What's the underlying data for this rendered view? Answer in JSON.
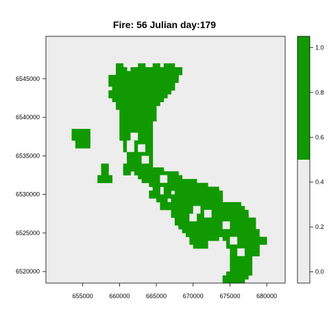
{
  "chart_data": {
    "type": "heatmap",
    "title": "Fire: 56   Julian day:179",
    "xlabel": "",
    "ylabel": "",
    "xlim": [
      650000,
      682500
    ],
    "ylim": [
      6518500,
      6550500
    ],
    "cell_size": 1000,
    "x_ticks": [
      655000,
      660000,
      665000,
      670000,
      675000,
      680000
    ],
    "x_tick_labels": [
      "655000",
      "660000",
      "665000",
      "670000",
      "675000",
      "680000"
    ],
    "y_ticks": [
      6520000,
      6525000,
      6530000,
      6535000,
      6540000,
      6545000
    ],
    "y_tick_labels": [
      "6520000",
      "6525000",
      "6530000",
      "6535000",
      "6540000",
      "6545000"
    ],
    "background_value": 0,
    "burned_value": 1,
    "colors": {
      "background": "#ededed",
      "burned": "#119901",
      "axis": "#000000"
    },
    "colorbar": {
      "ticks": [
        0.0,
        0.2,
        0.4,
        0.6,
        0.8,
        1.0
      ],
      "tick_labels": [
        "0.0",
        "0.2",
        "0.4",
        "0.6",
        "0.8",
        "1.0"
      ],
      "range": [
        -0.05,
        1.05
      ],
      "breakpoint": 0.5
    },
    "burned_cells_by_row": [
      {
        "y": 6546500,
        "x_ranges": [
          [
            660000,
            660000
          ],
          [
            663000,
            663000
          ],
          [
            665000,
            665000
          ],
          [
            666500,
            667000
          ]
        ]
      },
      {
        "y": 6546000,
        "x_ranges": [
          [
            660000,
            660500
          ],
          [
            662000,
            662500
          ],
          [
            663000,
            666000
          ],
          [
            667500,
            668000
          ]
        ]
      },
      {
        "y": 6545500,
        "x_ranges": [
          [
            660000,
            667500
          ]
        ]
      },
      {
        "y": 6545000,
        "x_ranges": [
          [
            659000,
            667500
          ]
        ]
      },
      {
        "y": 6544500,
        "x_ranges": [
          [
            659000,
            667000
          ]
        ]
      },
      {
        "y": 6544000,
        "x_ranges": [
          [
            659500,
            667000
          ]
        ]
      },
      {
        "y": 6543500,
        "x_ranges": [
          [
            659500,
            666500
          ]
        ]
      },
      {
        "y": 6543000,
        "x_ranges": [
          [
            659000,
            666000
          ]
        ]
      },
      {
        "y": 6542500,
        "x_ranges": [
          [
            659500,
            665500
          ]
        ]
      },
      {
        "y": 6542000,
        "x_ranges": [
          [
            660000,
            665000
          ]
        ]
      },
      {
        "y": 6541500,
        "x_ranges": [
          [
            660000,
            664500
          ]
        ]
      },
      {
        "y": 6541000,
        "x_ranges": [
          [
            660500,
            664500
          ]
        ]
      },
      {
        "y": 6540500,
        "x_ranges": [
          [
            660500,
            664500
          ]
        ]
      },
      {
        "y": 6540000,
        "x_ranges": [
          [
            660500,
            664500
          ]
        ]
      },
      {
        "y": 6539500,
        "x_ranges": [
          [
            660500,
            664000
          ]
        ]
      },
      {
        "y": 6539000,
        "x_ranges": [
          [
            660500,
            664000
          ]
        ]
      },
      {
        "y": 6538500,
        "x_ranges": [
          [
            660500,
            664000
          ]
        ]
      },
      {
        "y": 6538000,
        "x_ranges": [
          [
            654000,
            655500
          ],
          [
            660500,
            661500
          ],
          [
            662500,
            664000
          ]
        ]
      },
      {
        "y": 6537500,
        "x_ranges": [
          [
            654000,
            655500
          ],
          [
            660500,
            661500
          ],
          [
            662500,
            663500
          ],
          [
            664000,
            664000
          ]
        ]
      },
      {
        "y": 6537000,
        "x_ranges": [
          [
            654500,
            655500
          ],
          [
            661000,
            662500
          ],
          [
            663000,
            664000
          ]
        ]
      },
      {
        "y": 6536500,
        "x_ranges": [
          [
            654500,
            655500
          ],
          [
            661000,
            664000
          ]
        ]
      },
      {
        "y": 6536000,
        "x_ranges": [
          [
            661000,
            661500
          ],
          [
            662500,
            663000
          ],
          [
            664000,
            664000
          ]
        ]
      },
      {
        "y": 6535500,
        "x_ranges": [
          [
            661500,
            663000
          ],
          [
            664000,
            664000
          ]
        ]
      },
      {
        "y": 6535000,
        "x_ranges": [
          [
            661500,
            664000
          ]
        ]
      },
      {
        "y": 6534500,
        "x_ranges": [
          [
            661500,
            662500
          ],
          [
            663500,
            664000
          ]
        ]
      },
      {
        "y": 6534000,
        "x_ranges": [
          [
            662000,
            664000
          ]
        ]
      },
      {
        "y": 6533500,
        "x_ranges": [
          [
            658000,
            658000
          ],
          [
            661000,
            661500
          ],
          [
            662500,
            664000
          ]
        ]
      },
      {
        "y": 6533000,
        "x_ranges": [
          [
            658000,
            658000
          ],
          [
            661000,
            661000
          ],
          [
            662500,
            665500
          ]
        ]
      },
      {
        "y": 6532500,
        "x_ranges": [
          [
            663000,
            666000
          ],
          [
            666500,
            667500
          ]
        ]
      },
      {
        "y": 6532000,
        "x_ranges": [
          [
            657500,
            658500
          ],
          [
            663500,
            664000
          ],
          [
            664500,
            668000
          ]
        ]
      },
      {
        "y": 6531500,
        "x_ranges": [
          [
            664500,
            668000
          ],
          [
            669000,
            670000
          ]
        ]
      },
      {
        "y": 6531000,
        "x_ranges": [
          [
            665000,
            665000
          ],
          [
            666500,
            671500
          ]
        ]
      },
      {
        "y": 6530500,
        "x_ranges": [
          [
            668000,
            673000
          ]
        ]
      },
      {
        "y": 6530000,
        "x_ranges": [
          [
            664500,
            665000
          ],
          [
            666500,
            666500
          ],
          [
            668000,
            673500
          ]
        ]
      },
      {
        "y": 6529500,
        "x_ranges": [
          [
            665500,
            666000
          ],
          [
            667500,
            673500
          ]
        ]
      },
      {
        "y": 6529000,
        "x_ranges": [
          [
            667500,
            673500
          ]
        ]
      },
      {
        "y": 6528500,
        "x_ranges": [
          [
            666000,
            666000
          ],
          [
            667000,
            676000
          ]
        ]
      },
      {
        "y": 6528000,
        "x_ranges": [
          [
            667500,
            676500
          ]
        ]
      },
      {
        "y": 6527500,
        "x_ranges": [
          [
            667500,
            677000
          ]
        ]
      },
      {
        "y": 6527000,
        "x_ranges": [
          [
            668000,
            677000
          ]
        ]
      },
      {
        "y": 6526500,
        "x_ranges": [
          [
            668000,
            673500
          ],
          [
            674500,
            678000
          ]
        ]
      },
      {
        "y": 6526000,
        "x_ranges": [
          [
            668500,
            672000
          ],
          [
            673000,
            678000
          ]
        ]
      },
      {
        "y": 6525500,
        "x_ranges": [
          [
            669000,
            672000
          ],
          [
            673500,
            678000
          ]
        ]
      },
      {
        "y": 6525000,
        "x_ranges": [
          [
            669500,
            672000
          ],
          [
            673000,
            678000
          ],
          [
            678500,
            678500
          ]
        ]
      },
      {
        "y": 6524500,
        "x_ranges": [
          [
            670000,
            671500
          ],
          [
            672000,
            673000
          ],
          [
            674500,
            678000
          ]
        ]
      },
      {
        "y": 6524000,
        "x_ranges": [
          [
            670000,
            671000
          ],
          [
            675000,
            678500
          ],
          [
            679500,
            679500
          ]
        ]
      },
      {
        "y": 6523500,
        "x_ranges": [
          [
            670500,
            671500
          ],
          [
            675000,
            678500
          ]
        ]
      },
      {
        "y": 6523000,
        "x_ranges": [
          [
            675500,
            678500
          ]
        ]
      },
      {
        "y": 6522500,
        "x_ranges": [
          [
            676000,
            678500
          ]
        ]
      },
      {
        "y": 6522000,
        "x_ranges": [
          [
            675500,
            677500
          ]
        ]
      },
      {
        "y": 6521500,
        "x_ranges": [
          [
            675500,
            677500
          ]
        ]
      },
      {
        "y": 6521000,
        "x_ranges": [
          [
            675500,
            677500
          ]
        ]
      },
      {
        "y": 6520500,
        "x_ranges": [
          [
            675500,
            677500
          ]
        ]
      },
      {
        "y": 6520000,
        "x_ranges": [
          [
            676000,
            677500
          ]
        ]
      },
      {
        "y": 6519500,
        "x_ranges": [
          [
            675000,
            675500
          ],
          [
            676000,
            677000
          ]
        ]
      },
      {
        "y": 6519000,
        "x_ranges": [
          [
            674500,
            675500
          ],
          [
            676000,
            676500
          ]
        ]
      }
    ],
    "unburned_cells_inside": [
      [
        663000,
        6536000
      ],
      [
        661500,
        6536000
      ],
      [
        663500,
        6534500
      ],
      [
        662000,
        6537500
      ],
      [
        661500,
        6536500
      ],
      [
        666000,
        6532000
      ],
      [
        670500,
        6528000
      ],
      [
        670000,
        6527000
      ],
      [
        674500,
        6526000
      ],
      [
        672000,
        6527500
      ],
      [
        675500,
        6524000
      ],
      [
        676500,
        6522500
      ]
    ]
  }
}
